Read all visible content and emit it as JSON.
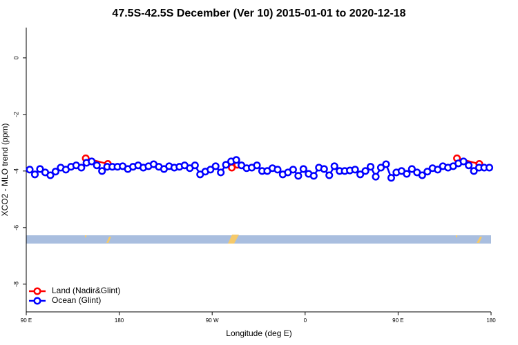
{
  "chart_data": {
    "type": "line",
    "title": "47.5S-42.5S December (Ver 10)   2015-01-01 to 2020-12-18",
    "x_label": "Longitude (deg E)",
    "y_label": "XCO2 - MLO trend (ppm)",
    "xlim": [
      90,
      540
    ],
    "xticks": [
      {
        "value": 90,
        "label": "90 E"
      },
      {
        "value": 180,
        "label": "180"
      },
      {
        "value": 270,
        "label": "90 W"
      },
      {
        "value": 360,
        "label": "0"
      },
      {
        "value": 450,
        "label": "90 E"
      },
      {
        "value": 540,
        "label": "180"
      }
    ],
    "ylim": [
      -8.98,
      1.07
    ],
    "yticks": [
      0,
      -2,
      -4,
      -6,
      -8
    ],
    "legend_position": "bottom-left",
    "series": [
      {
        "name": "Land (Nadir&Glint)",
        "color": "#ff0000",
        "x": [
          147.6,
          169.0,
          null,
          289.0,
          294.5,
          null,
          507.0,
          528.6
        ],
        "values": [
          -3.55,
          -3.75,
          null,
          -3.88,
          -3.78,
          null,
          -3.55,
          -3.75
        ]
      },
      {
        "name": "Ocean (Glint)",
        "color": "#0000ff",
        "x": [
          93.35,
          98.35,
          103.35,
          108.35,
          113.35,
          118.35,
          123.35,
          128.35,
          133.35,
          138.35,
          143.35,
          148.35,
          153.35,
          158.35,
          163.35,
          168.35,
          173.35,
          178.35,
          183.35,
          188.35,
          193.35,
          198.35,
          203.35,
          208.35,
          213.35,
          218.35,
          223.35,
          228.35,
          233.35,
          238.35,
          243.35,
          248.35,
          253.35,
          258.35,
          263.35,
          268.35,
          273.35,
          278.35,
          283.35,
          288.35,
          293.35,
          298.35,
          303.35,
          308.35,
          313.35,
          318.35,
          323.35,
          328.35,
          333.35,
          338.35,
          343.35,
          348.35,
          353.35,
          358.35,
          363.35,
          368.35,
          373.35,
          378.35,
          383.35,
          388.35,
          393.35,
          398.35,
          403.35,
          408.35,
          413.35,
          418.35,
          423.35,
          428.35,
          433.35,
          438.35,
          443.35,
          448.35,
          453.35,
          458.35,
          463.35,
          468.35,
          473.35,
          478.35,
          483.35,
          488.35,
          493.35,
          498.35,
          503.35,
          508.35,
          513.35,
          518.35,
          523.35,
          528.35,
          533.35,
          538.35
        ],
        "values": [
          -3.95,
          -4.12,
          -3.93,
          -4.05,
          -4.15,
          -4.02,
          -3.88,
          -3.95,
          -3.85,
          -3.8,
          -3.88,
          -3.71,
          -3.66,
          -3.8,
          -4.0,
          -3.85,
          -3.85,
          -3.85,
          -3.83,
          -3.93,
          -3.85,
          -3.8,
          -3.88,
          -3.83,
          -3.76,
          -3.85,
          -3.93,
          -3.83,
          -3.88,
          -3.85,
          -3.8,
          -3.9,
          -3.8,
          -4.12,
          -4.02,
          -3.95,
          -3.83,
          -4.05,
          -3.78,
          -3.66,
          -3.61,
          -3.8,
          -3.9,
          -3.88,
          -3.8,
          -4.0,
          -4.0,
          -3.9,
          -3.95,
          -4.12,
          -4.05,
          -3.95,
          -4.17,
          -3.93,
          -4.1,
          -4.17,
          -3.88,
          -3.93,
          -4.15,
          -3.83,
          -4.0,
          -4.0,
          -3.98,
          -3.95,
          -4.12,
          -4.0,
          -3.85,
          -4.2,
          -3.88,
          -3.76,
          -4.24,
          -4.05,
          -4.0,
          -4.1,
          -3.93,
          -4.05,
          -4.15,
          -4.02,
          -3.9,
          -3.95,
          -3.83,
          -3.88,
          -3.83,
          -3.73,
          -3.66,
          -3.8,
          -4.0,
          -3.88,
          -3.88,
          -3.88
        ]
      }
    ]
  }
}
